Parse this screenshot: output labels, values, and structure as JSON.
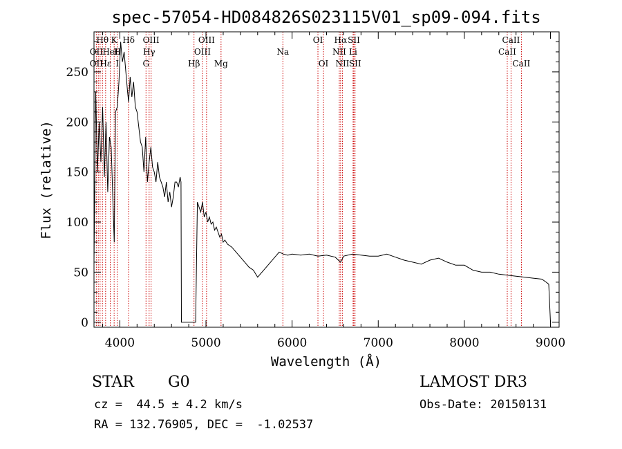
{
  "chart_data": {
    "type": "line",
    "title": "spec-57054-HD084826S023115V01_sp09-094.fits",
    "xlabel": "Wavelength (Å)",
    "ylabel": "Flux (relative)",
    "xlim": [
      3700,
      9100
    ],
    "ylim": [
      -5,
      290
    ],
    "x_ticks": [
      4000,
      5000,
      6000,
      7000,
      8000,
      9000
    ],
    "y_ticks": [
      0,
      50,
      100,
      150,
      200,
      250
    ],
    "grid": false,
    "series": [
      {
        "name": "",
        "x": [
          3700,
          3720,
          3740,
          3760,
          3780,
          3800,
          3820,
          3840,
          3860,
          3880,
          3900,
          3920,
          3935,
          3950,
          3970,
          3990,
          4010,
          4030,
          4050,
          4070,
          4090,
          4102,
          4120,
          4140,
          4160,
          4180,
          4200,
          4220,
          4240,
          4260,
          4280,
          4300,
          4320,
          4340,
          4360,
          4380,
          4400,
          4420,
          4440,
          4460,
          4480,
          4500,
          4520,
          4540,
          4560,
          4580,
          4600,
          4620,
          4640,
          4660,
          4680,
          4700,
          4710,
          4715,
          4800,
          4860,
          4870,
          4880,
          4900,
          4920,
          4940,
          4960,
          4980,
          5000,
          5020,
          5040,
          5060,
          5080,
          5100,
          5120,
          5140,
          5160,
          5180,
          5200,
          5220,
          5250,
          5300,
          5350,
          5400,
          5450,
          5500,
          5550,
          5600,
          5650,
          5700,
          5750,
          5800,
          5850,
          5900,
          5950,
          6000,
          6100,
          6200,
          6300,
          6400,
          6500,
          6563,
          6600,
          6700,
          6800,
          6900,
          7000,
          7100,
          7200,
          7300,
          7400,
          7500,
          7600,
          7700,
          7800,
          7900,
          8000,
          8100,
          8200,
          8300,
          8400,
          8500,
          8600,
          8700,
          8800,
          8900,
          8950,
          8980,
          9000
        ],
        "y": [
          60,
          230,
          150,
          200,
          160,
          215,
          145,
          200,
          130,
          185,
          175,
          120,
          80,
          210,
          215,
          240,
          280,
          260,
          270,
          250,
          230,
          220,
          245,
          225,
          240,
          215,
          210,
          195,
          180,
          175,
          150,
          185,
          140,
          160,
          175,
          155,
          150,
          140,
          160,
          145,
          140,
          135,
          125,
          140,
          120,
          130,
          115,
          125,
          140,
          140,
          135,
          145,
          140,
          0,
          0,
          0,
          0,
          0,
          120,
          115,
          110,
          120,
          105,
          110,
          100,
          105,
          98,
          100,
          92,
          95,
          90,
          85,
          88,
          80,
          82,
          78,
          75,
          70,
          65,
          60,
          55,
          52,
          45,
          50,
          55,
          60,
          65,
          70,
          68,
          67,
          68,
          67,
          68,
          66,
          67,
          65,
          60,
          66,
          68,
          67,
          66,
          66,
          68,
          65,
          62,
          60,
          58,
          62,
          64,
          60,
          57,
          57,
          52,
          50,
          50,
          48,
          47,
          46,
          45,
          44,
          43,
          40,
          38,
          0
        ]
      }
    ],
    "line_labels": [
      {
        "text": "Hθ",
        "wave": 3798,
        "row": 0
      },
      {
        "text": "K",
        "wave": 3934,
        "row": 0
      },
      {
        "text": "Hδ",
        "wave": 4102,
        "row": 0
      },
      {
        "text": "OIII",
        "wave": 4363,
        "row": 0
      },
      {
        "text": "OIII",
        "wave": 5007,
        "row": 0
      },
      {
        "text": "OI",
        "wave": 6300,
        "row": 0
      },
      {
        "text": "Hα",
        "wave": 6563,
        "row": 0
      },
      {
        "text": "SII",
        "wave": 6717,
        "row": 0
      },
      {
        "text": "CaII",
        "wave": 8542,
        "row": 0
      },
      {
        "text": "OII",
        "wave": 3727,
        "row": 1
      },
      {
        "text": "HeI",
        "wave": 3889,
        "row": 1
      },
      {
        "text": "H",
        "wave": 3970,
        "row": 1
      },
      {
        "text": "Hγ",
        "wave": 4340,
        "row": 1
      },
      {
        "text": "OIII",
        "wave": 4959,
        "row": 1
      },
      {
        "text": "Na",
        "wave": 5893,
        "row": 1
      },
      {
        "text": "NII",
        "wave": 6548,
        "row": 1
      },
      {
        "text": "Li",
        "wave": 6708,
        "row": 1
      },
      {
        "text": "CaII",
        "wave": 8498,
        "row": 1
      },
      {
        "text": "OII",
        "wave": 3727,
        "row": 2
      },
      {
        "text": "Hε",
        "wave": 3835,
        "row": 2
      },
      {
        "text": "I",
        "wave": 3970,
        "row": 2
      },
      {
        "text": "G",
        "wave": 4304,
        "row": 2
      },
      {
        "text": "Hβ",
        "wave": 4861,
        "row": 2
      },
      {
        "text": "Mg",
        "wave": 5175,
        "row": 2
      },
      {
        "text": "OI",
        "wave": 6364,
        "row": 2
      },
      {
        "text": "NII",
        "wave": 6584,
        "row": 2
      },
      {
        "text": "SII",
        "wave": 6731,
        "row": 2
      },
      {
        "text": "CaII",
        "wave": 8662,
        "row": 2
      }
    ],
    "line_marker_waves": [
      3727,
      3750,
      3771,
      3798,
      3835,
      3889,
      3934,
      3970,
      4102,
      4304,
      4340,
      4363,
      4861,
      4959,
      5007,
      5175,
      5893,
      6300,
      6364,
      6548,
      6563,
      6584,
      6708,
      6717,
      6731,
      8498,
      8542,
      8662
    ],
    "line_color": "#cc0000"
  },
  "info": {
    "object_class": "STAR",
    "subclass": "G0",
    "survey": "LAMOST DR3",
    "redshift": "cz =  44.5 ± 4.2 km/s",
    "obs_date": "Obs-Date: 20150131",
    "coords": "RA = 132.76905, DEC =  -1.02537"
  }
}
